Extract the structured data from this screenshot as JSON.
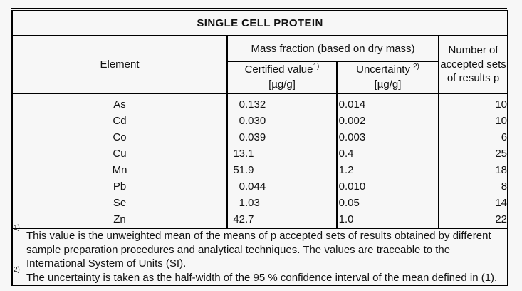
{
  "page": {
    "background": "#f7f7f7",
    "line_color": "#000000",
    "text_color": "#111111"
  },
  "table": {
    "title": "SINGLE CELL PROTEIN",
    "header": {
      "element_label": "Element",
      "mass_fraction_label": "Mass fraction (based on dry mass)",
      "certified": {
        "label": "Certified value",
        "sup": "1)",
        "unit": "[µg/g]"
      },
      "uncertainty": {
        "label": "Uncertainty",
        "sup": "2)",
        "unit": "[µg/g]"
      },
      "sets_label": "Number of accepted sets of results p"
    },
    "rows": [
      {
        "element": "As",
        "certified": "0.132",
        "uncertainty": "0.014",
        "sets": "10"
      },
      {
        "element": "Cd",
        "certified": "0.030",
        "uncertainty": "0.002",
        "sets": "10"
      },
      {
        "element": "Co",
        "certified": "0.039",
        "uncertainty": "0.003",
        "sets": "6"
      },
      {
        "element": "Cu",
        "certified": "13.1",
        "uncertainty": "0.4",
        "sets": "25"
      },
      {
        "element": "Mn",
        "certified": "51.9",
        "uncertainty": "1.2",
        "sets": "18"
      },
      {
        "element": "Pb",
        "certified": "0.044",
        "uncertainty": "0.010",
        "sets": "8"
      },
      {
        "element": "Se",
        "certified": "1.03",
        "uncertainty": "0.05",
        "sets": "14"
      },
      {
        "element": "Zn",
        "certified": "42.7",
        "uncertainty": "1.0",
        "sets": "22"
      }
    ],
    "footnotes": [
      {
        "marker": "1)",
        "text": "This value is the unweighted mean of the means of p accepted sets of results obtained by different sample preparation procedures and analytical techniques. The values are traceable to the International System of Units (SI)."
      },
      {
        "marker": "2)",
        "text": "The uncertainty is taken as the half-width of the 95 % confidence interval of the mean defined in (1)."
      }
    ]
  }
}
